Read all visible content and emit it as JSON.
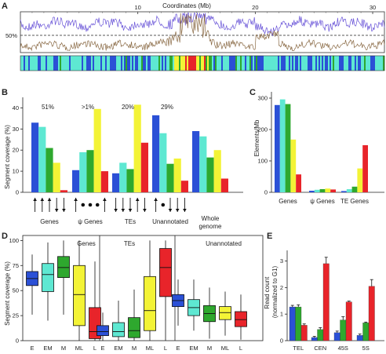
{
  "panels": {
    "A": {
      "letter": "A",
      "x_label": "Coordinates (Mb)",
      "x_ticks": [
        "10",
        "20",
        "30"
      ],
      "x_range": [
        0,
        31
      ],
      "y_label": "50%",
      "series_colors": {
        "purple": "#6a55d8",
        "brown": "#8a6a45"
      }
    },
    "B": {
      "letter": "B",
      "y_label": "Segment coverage (%)",
      "y_ticks": [
        "0",
        "10",
        "20",
        "30",
        "40"
      ],
      "ylim": [
        0,
        45
      ],
      "percent_labels": [
        "51%",
        ">1%",
        "20%",
        "29%"
      ],
      "category_labels": [
        "Genes",
        "ψ Genes",
        "TEs",
        "Unannotated",
        "Whole genome"
      ]
    },
    "C": {
      "letter": "C",
      "y_label": "Elements/Mb",
      "y_ticks": [
        "0",
        "100",
        "200",
        "300"
      ],
      "ylim": [
        0,
        320
      ],
      "category_labels": [
        "Genes",
        "ψ Genes",
        "TE Genes"
      ]
    },
    "D": {
      "letter": "D",
      "y_label": "Segment coverage (%)",
      "y_ticks": [
        "0",
        "25",
        "50",
        "75",
        "100"
      ],
      "ylim": [
        0,
        105
      ],
      "group_labels": [
        "Genes",
        "TEs",
        "Unannotated"
      ],
      "x_labels": [
        "E",
        "EM",
        "M",
        "ML",
        "L"
      ]
    },
    "E": {
      "letter": "E",
      "y_label": "Read count (normalized to G1)",
      "y_ticks": [
        "0",
        "1",
        "2",
        "3"
      ],
      "ylim": [
        0,
        3.4
      ],
      "category_labels": [
        "TEL",
        "CEN",
        "45S",
        "5S"
      ]
    }
  },
  "colors": {
    "E": "#2b50d6",
    "EM": "#5ee8d2",
    "M": "#2ea82e",
    "ML": "#f3f336",
    "L": "#e8242a"
  },
  "chart_data": [
    {
      "type": "line",
      "panel": "A",
      "xlabel": "Coordinates (Mb)",
      "xlim": [
        0,
        31
      ]
    },
    {
      "type": "bar",
      "panel": "B",
      "ylabel": "Segment coverage (%)",
      "ylim": [
        0,
        45
      ],
      "categories": [
        "Genes",
        "ψ Genes",
        "TEs",
        "Unannotated",
        "Whole genome"
      ],
      "series": [
        {
          "name": "E",
          "values": [
            33,
            10.5,
            9,
            36.5,
            29
          ]
        },
        {
          "name": "EM",
          "values": [
            31,
            19,
            14,
            28,
            26.5
          ]
        },
        {
          "name": "M",
          "values": [
            21,
            20,
            11,
            13.5,
            16.5
          ]
        },
        {
          "name": "ML",
          "values": [
            14,
            39.5,
            41.5,
            16,
            20
          ]
        },
        {
          "name": "L",
          "values": [
            1,
            10,
            23.5,
            5.5,
            6.5
          ]
        }
      ]
    },
    {
      "type": "bar",
      "panel": "C",
      "ylabel": "Elements/Mb",
      "ylim": [
        0,
        320
      ],
      "categories": [
        "Genes",
        "ψ Genes",
        "TE Genes"
      ],
      "series": [
        {
          "name": "E",
          "values": [
            278,
            5,
            4
          ]
        },
        {
          "name": "EM",
          "values": [
            296,
            8,
            10
          ]
        },
        {
          "name": "M",
          "values": [
            281,
            10,
            18
          ]
        },
        {
          "name": "ML",
          "values": [
            168,
            12,
            76
          ]
        },
        {
          "name": "L",
          "values": [
            57,
            9,
            150
          ]
        }
      ]
    },
    {
      "type": "box",
      "panel": "D",
      "ylabel": "Segment coverage (%)",
      "ylim": [
        0,
        105
      ],
      "groups": [
        {
          "name": "Genes",
          "boxes": [
            {
              "label": "E",
              "whisker_low": 26,
              "q1": 55,
              "median": 62,
              "q3": 69,
              "whisker_high": 86
            },
            {
              "label": "EM",
              "whisker_low": 20,
              "q1": 49,
              "median": 66,
              "q3": 77,
              "whisker_high": 98
            },
            {
              "label": "M",
              "whisker_low": 26,
              "q1": 63,
              "median": 73,
              "q3": 84,
              "whisker_high": 100
            },
            {
              "label": "ML",
              "whisker_low": 0,
              "q1": 15,
              "median": 46,
              "q3": 75,
              "whisker_high": 100
            },
            {
              "label": "L",
              "whisker_low": 0,
              "q1": 2,
              "median": 9,
              "q3": 33,
              "whisker_high": 79
            }
          ]
        },
        {
          "name": "TEs",
          "boxes": [
            {
              "label": "E",
              "whisker_low": 0,
              "q1": 5,
              "median": 9,
              "q3": 15,
              "whisker_high": 28
            },
            {
              "label": "EM",
              "whisker_low": 0,
              "q1": 4,
              "median": 9,
              "q3": 18,
              "whisker_high": 40
            },
            {
              "label": "M",
              "whisker_low": 0,
              "q1": 3,
              "median": 10,
              "q3": 23,
              "whisker_high": 51
            },
            {
              "label": "ML",
              "whisker_low": 0,
              "q1": 10,
              "median": 30,
              "q3": 64,
              "whisker_high": 100
            },
            {
              "label": "L",
              "whisker_low": 0,
              "q1": 44,
              "median": 73,
              "q3": 92,
              "whisker_high": 100
            }
          ]
        },
        {
          "name": "Unannotated",
          "boxes": [
            {
              "label": "E",
              "whisker_low": 15,
              "q1": 34,
              "median": 40,
              "q3": 46,
              "whisker_high": 61
            },
            {
              "label": "EM",
              "whisker_low": 10,
              "q1": 25,
              "median": 33,
              "q3": 41,
              "whisker_high": 61
            },
            {
              "label": "M",
              "whisker_low": 2,
              "q1": 19,
              "median": 27,
              "q3": 35,
              "whisker_high": 53
            },
            {
              "label": "ML",
              "whisker_low": 5,
              "q1": 21,
              "median": 28,
              "q3": 34,
              "whisker_high": 49
            },
            {
              "label": "L",
              "whisker_low": 1,
              "q1": 14,
              "median": 21,
              "q3": 29,
              "whisker_high": 46
            }
          ]
        }
      ]
    },
    {
      "type": "bar",
      "panel": "E",
      "ylabel": "Read count (normalized to G1)",
      "ylim": [
        0,
        3.4
      ],
      "categories": [
        "TEL",
        "CEN",
        "45S",
        "5S"
      ],
      "series": [
        {
          "name": "E",
          "values": [
            1.27,
            0.12,
            0.3,
            0.2
          ],
          "errors": [
            0.06,
            0.04,
            0.06,
            0.05
          ]
        },
        {
          "name": "M",
          "values": [
            1.27,
            0.42,
            0.78,
            0.67
          ],
          "errors": [
            0.08,
            0.07,
            0.12,
            0.03
          ]
        },
        {
          "name": "L",
          "values": [
            0.58,
            2.9,
            1.46,
            2.05
          ],
          "errors": [
            0.05,
            0.24,
            0.03,
            0.25
          ]
        }
      ]
    }
  ]
}
